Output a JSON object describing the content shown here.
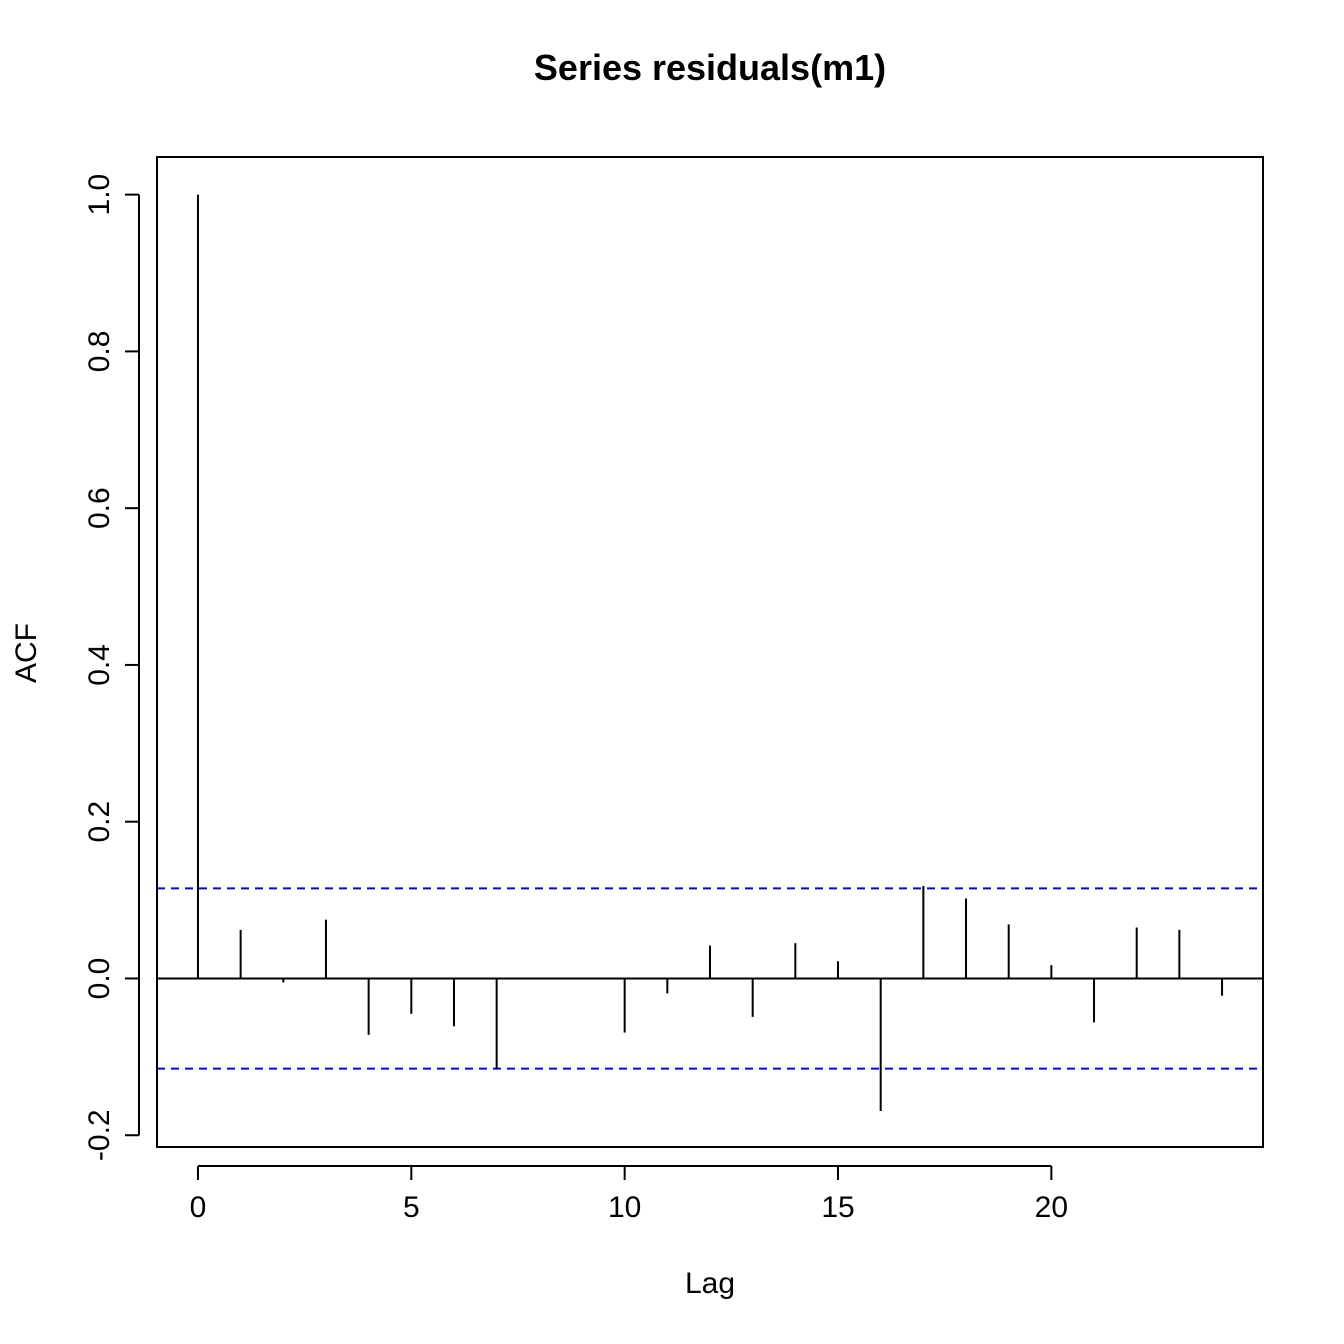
{
  "chart_data": {
    "type": "bar",
    "title": "Series  residuals(m1)",
    "xlabel": "Lag",
    "ylabel": "ACF",
    "xlim": [
      -0.96,
      24.96
    ],
    "ylim": [
      -0.215,
      1.048
    ],
    "x_ticks": [
      0,
      5,
      10,
      15,
      20
    ],
    "x_tick_labels": [
      "0",
      "5",
      "10",
      "15",
      "20"
    ],
    "y_ticks": [
      -0.2,
      0.0,
      0.2,
      0.4,
      0.6,
      0.8,
      1.0
    ],
    "y_tick_labels": [
      "-0.2",
      "0.0",
      "0.2",
      "0.4",
      "0.6",
      "0.8",
      "1.0"
    ],
    "grid": false,
    "lags": [
      0,
      1,
      2,
      3,
      4,
      5,
      6,
      7,
      8,
      9,
      10,
      11,
      12,
      13,
      14,
      15,
      16,
      17,
      18,
      19,
      20,
      21,
      22,
      23,
      24
    ],
    "acf": [
      1.0,
      0.062,
      -0.005,
      0.075,
      -0.072,
      -0.045,
      -0.061,
      -0.116,
      0.001,
      0.001,
      -0.069,
      -0.019,
      0.042,
      -0.049,
      0.045,
      0.022,
      -0.169,
      0.118,
      0.102,
      0.069,
      0.017,
      -0.056,
      0.065,
      0.062,
      -0.022
    ],
    "confidence_bounds": [
      0.115,
      -0.115
    ],
    "colors": {
      "bars": "#000000",
      "confidence": "#0000ff",
      "zero_line": "#000000"
    }
  }
}
